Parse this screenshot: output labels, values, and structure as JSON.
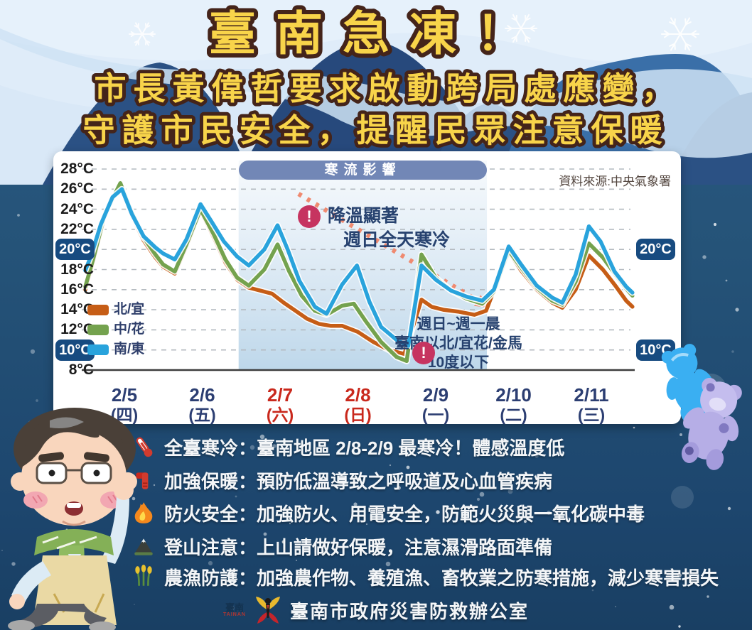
{
  "header": {
    "title": "臺南急凍！",
    "subtitle_line1": "市長黃偉哲要求啟動跨局處應變，",
    "subtitle_line2": "守護市民安全，提醒民眾注意保暖",
    "title_color": "#f8d44a",
    "title_outline": "#44241a"
  },
  "chart_data": {
    "type": "line",
    "title_pill": "寒流影響",
    "source": "資料來源:中央氣象署",
    "ylim": [
      8,
      28
    ],
    "yticks": [
      8,
      10,
      12,
      14,
      16,
      18,
      20,
      22,
      24,
      26,
      28
    ],
    "highlight_yticks": [
      10,
      20
    ],
    "badge_values": [
      "20°C",
      "10°C"
    ],
    "unit": "°C",
    "xlim_days": [
      0,
      7.03
    ],
    "cold_front_span_days": [
      1.97,
      5.16
    ],
    "x_days": [
      {
        "date": "2/5",
        "weekday": "(四)",
        "color": "#2c3e72"
      },
      {
        "date": "2/6",
        "weekday": "(五)",
        "color": "#2c3e72"
      },
      {
        "date": "2/7",
        "weekday": "(六)",
        "color": "#c9281c"
      },
      {
        "date": "2/8",
        "weekday": "(日)",
        "color": "#c9281c"
      },
      {
        "date": "2/9",
        "weekday": "(一)",
        "color": "#2c3e72"
      },
      {
        "date": "2/10",
        "weekday": "(二)",
        "color": "#2c3e72"
      },
      {
        "date": "2/11",
        "weekday": "(三)",
        "color": "#2c3e72"
      }
    ],
    "series": [
      {
        "name": "北/宜",
        "color": "#c65d16",
        "points": [
          [
            0,
            16.0
          ],
          [
            0.1,
            18.8
          ],
          [
            0.25,
            23.3
          ],
          [
            0.45,
            26.5
          ],
          [
            0.58,
            23.7
          ],
          [
            0.75,
            20.9
          ],
          [
            0.9,
            19.2
          ],
          [
            1,
            18.3
          ],
          [
            1.15,
            17.6
          ],
          [
            1.3,
            20.3
          ],
          [
            1.48,
            23.9
          ],
          [
            1.65,
            21.2
          ],
          [
            1.8,
            18.7
          ],
          [
            1.95,
            17.0
          ],
          [
            2.1,
            16.2
          ],
          [
            2.25,
            15.9
          ],
          [
            2.4,
            15.6
          ],
          [
            2.55,
            14.7
          ],
          [
            2.7,
            13.9
          ],
          [
            2.85,
            13.1
          ],
          [
            3,
            12.6
          ],
          [
            3.15,
            12.4
          ],
          [
            3.3,
            12.4
          ],
          [
            3.5,
            11.8
          ],
          [
            3.7,
            10.8
          ],
          [
            3.9,
            10.0
          ],
          [
            4.1,
            9.6
          ],
          [
            4.32,
            15.0
          ],
          [
            4.45,
            14.3
          ],
          [
            4.6,
            14.0
          ],
          [
            4.8,
            13.8
          ],
          [
            5,
            13.5
          ],
          [
            5.15,
            13.9
          ],
          [
            5.44,
            19.8
          ],
          [
            5.6,
            17.9
          ],
          [
            5.8,
            16.0
          ],
          [
            6,
            14.7
          ],
          [
            6.13,
            14.2
          ],
          [
            6.3,
            16.0
          ],
          [
            6.47,
            19.4
          ],
          [
            6.65,
            18.0
          ],
          [
            6.82,
            16.3
          ],
          [
            6.95,
            14.9
          ],
          [
            7.03,
            14.3
          ]
        ]
      },
      {
        "name": "中/花",
        "color": "#74a24e",
        "points": [
          [
            0,
            16.3
          ],
          [
            0.1,
            19.0
          ],
          [
            0.25,
            23.5
          ],
          [
            0.45,
            26.6
          ],
          [
            0.58,
            24.0
          ],
          [
            0.75,
            21.2
          ],
          [
            0.9,
            19.5
          ],
          [
            1,
            18.5
          ],
          [
            1.15,
            17.8
          ],
          [
            1.3,
            20.5
          ],
          [
            1.48,
            24.0
          ],
          [
            1.65,
            21.5
          ],
          [
            1.8,
            19.0
          ],
          [
            1.95,
            17.2
          ],
          [
            2.1,
            16.4
          ],
          [
            2.3,
            18.0
          ],
          [
            2.47,
            20.5
          ],
          [
            2.62,
            17.8
          ],
          [
            2.78,
            15.4
          ],
          [
            2.95,
            13.9
          ],
          [
            3.1,
            13.5
          ],
          [
            3.3,
            14.4
          ],
          [
            3.45,
            14.6
          ],
          [
            3.6,
            12.9
          ],
          [
            3.8,
            10.8
          ],
          [
            4,
            9.3
          ],
          [
            4.13,
            8.9
          ],
          [
            4.32,
            19.5
          ],
          [
            4.5,
            17.2
          ],
          [
            4.7,
            15.9
          ],
          [
            4.9,
            15.1
          ],
          [
            5.1,
            14.6
          ],
          [
            5.25,
            15.8
          ],
          [
            5.44,
            19.9
          ],
          [
            5.6,
            18.2
          ],
          [
            5.8,
            16.2
          ],
          [
            6,
            14.9
          ],
          [
            6.13,
            14.5
          ],
          [
            6.3,
            16.8
          ],
          [
            6.47,
            20.6
          ],
          [
            6.65,
            19.2
          ],
          [
            6.82,
            17.4
          ],
          [
            6.95,
            16.1
          ],
          [
            7.03,
            15.4
          ]
        ]
      },
      {
        "name": "南/東",
        "color": "#29a3dc",
        "points": [
          [
            0,
            17.9
          ],
          [
            0.08,
            19.5
          ],
          [
            0.2,
            22.5
          ],
          [
            0.35,
            25.2
          ],
          [
            0.47,
            26.0
          ],
          [
            0.6,
            23.5
          ],
          [
            0.75,
            21.3
          ],
          [
            0.9,
            20.2
          ],
          [
            1,
            19.6
          ],
          [
            1.15,
            19.0
          ],
          [
            1.3,
            21.0
          ],
          [
            1.48,
            24.5
          ],
          [
            1.62,
            22.8
          ],
          [
            1.78,
            20.8
          ],
          [
            1.95,
            19.3
          ],
          [
            2.1,
            18.4
          ],
          [
            2.3,
            20.0
          ],
          [
            2.47,
            22.4
          ],
          [
            2.6,
            20.0
          ],
          [
            2.75,
            16.9
          ],
          [
            2.95,
            14.3
          ],
          [
            3.1,
            13.6
          ],
          [
            3.3,
            16.5
          ],
          [
            3.49,
            18.4
          ],
          [
            3.65,
            14.8
          ],
          [
            3.8,
            12.3
          ],
          [
            4,
            11.0
          ],
          [
            4.15,
            10.4
          ],
          [
            4.32,
            18.4
          ],
          [
            4.5,
            17.0
          ],
          [
            4.7,
            15.9
          ],
          [
            4.9,
            15.3
          ],
          [
            5.1,
            14.9
          ],
          [
            5.25,
            16.0
          ],
          [
            5.44,
            20.3
          ],
          [
            5.6,
            18.5
          ],
          [
            5.8,
            16.4
          ],
          [
            6,
            15.2
          ],
          [
            6.13,
            14.7
          ],
          [
            6.3,
            17.5
          ],
          [
            6.47,
            22.3
          ],
          [
            6.62,
            20.8
          ],
          [
            6.8,
            17.8
          ],
          [
            6.95,
            16.3
          ],
          [
            7.03,
            15.7
          ]
        ]
      }
    ],
    "annotations": [
      {
        "lines": [
          "降溫顯著",
          "週日全天寒冷"
        ]
      },
      {
        "lines": [
          "週日~週一晨",
          "臺南以北/宜花/金馬",
          "10度以下"
        ]
      }
    ],
    "alert_mark": "!",
    "colors": {
      "pill_bg": "#7287b6",
      "badge_bg": "#174b80",
      "arrow": "#ef8a70",
      "alert_circle": "#c63460",
      "annotation_text": "#27426f",
      "grid": "#b4bac0",
      "axis": "#3d3d3d"
    }
  },
  "advisories": [
    {
      "icon": "thermometer-icon",
      "text": "全臺寒冷：臺南地區 2/8-2/9 最寒冷！體感溫度低"
    },
    {
      "icon": "scarf-icon",
      "text": "加強保暖：預防低溫導致之呼吸道及心血管疾病"
    },
    {
      "icon": "fire-icon",
      "text": "防火安全：加強防火、用電安全，防範火災與一氧化碳中毒"
    },
    {
      "icon": "mountain-icon",
      "text": "登山注意：上山請做好保暖，注意濕滑路面準備"
    },
    {
      "icon": "crops-icon",
      "text": "農漁防護：加強農作物、養殖漁、畜牧業之防寒措施，減少寒害損失"
    }
  ],
  "footer": {
    "logo_cn": "臺南",
    "logo_en": "TAINAN",
    "org": "臺南市政府災害防救辦公室"
  }
}
